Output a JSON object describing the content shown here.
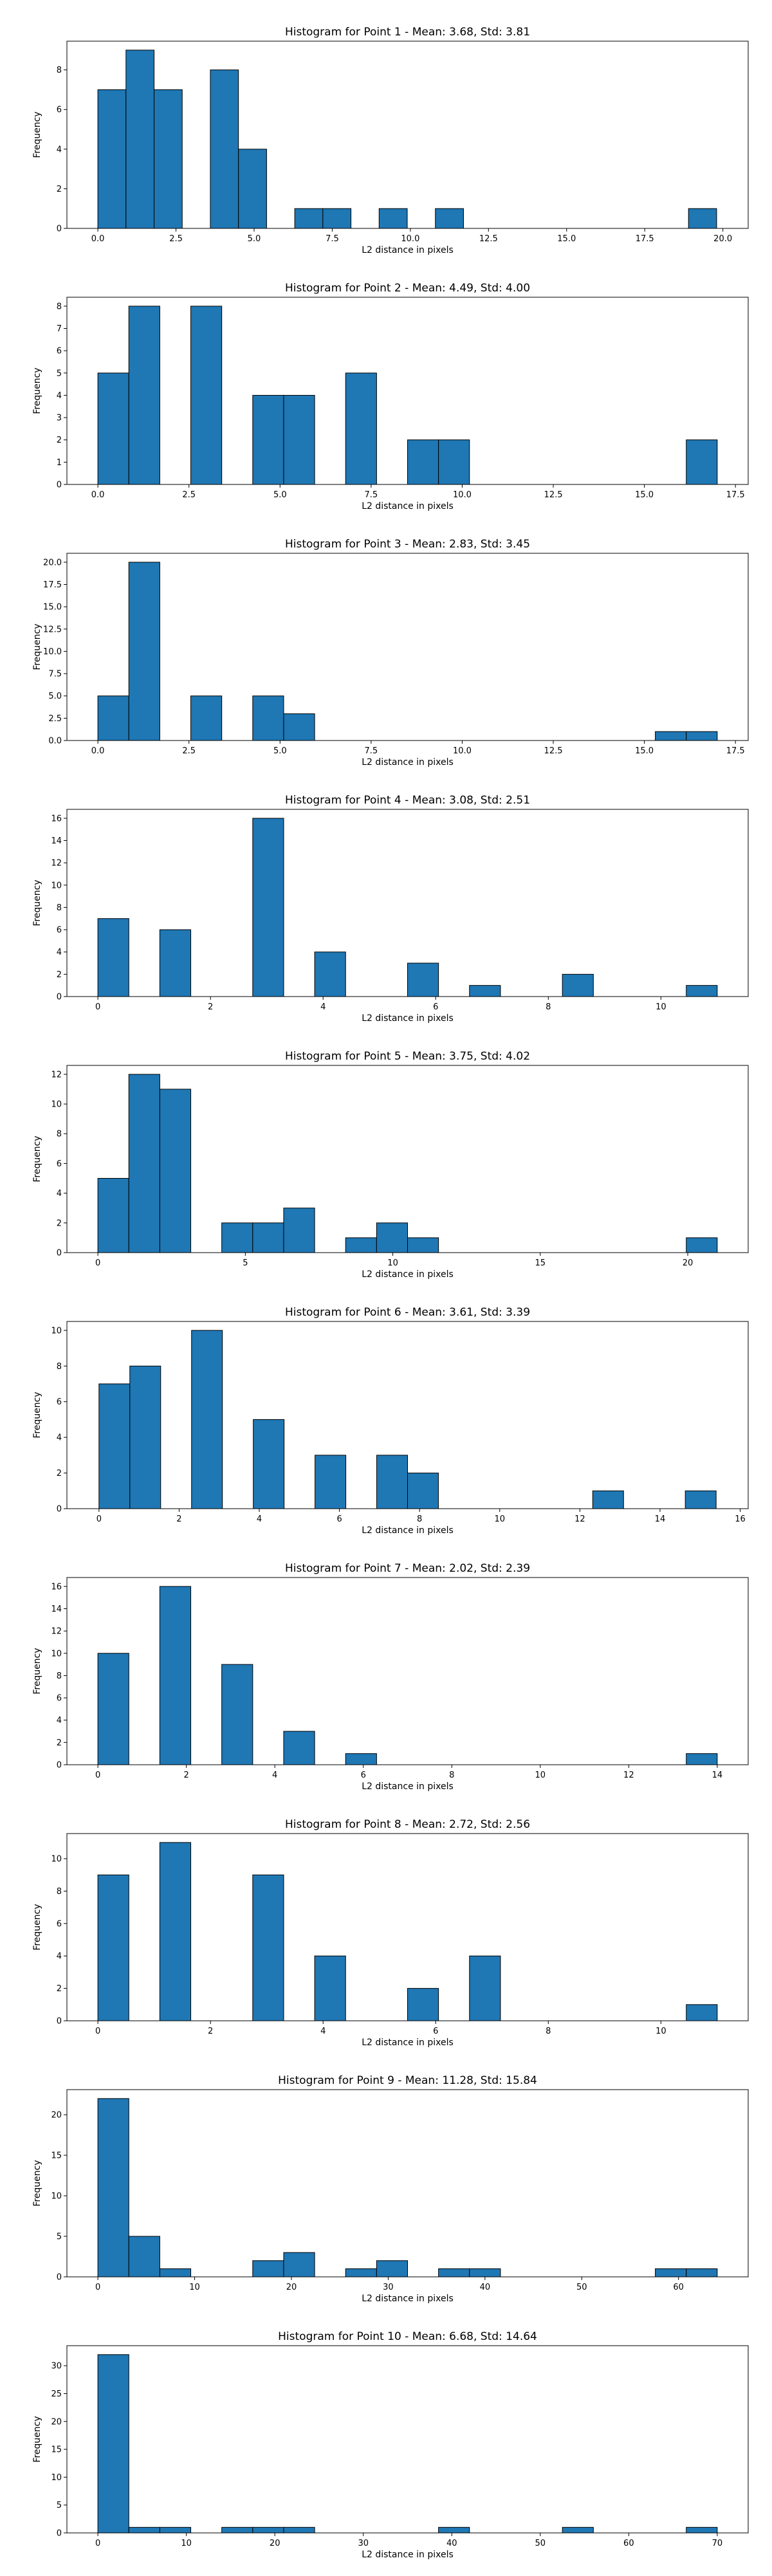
{
  "figure": {
    "bar_color": "#1f77b4",
    "edge_color": "#000000"
  },
  "chart_data": [
    {
      "type": "bar",
      "title": "Histogram for Point 1 - Mean: 3.68, Std: 3.81",
      "xlabel": "L2 distance in pixels",
      "ylabel": "Frequency",
      "grid": false,
      "xlim": [
        -0.99,
        20.81
      ],
      "ylim": [
        0,
        9.45
      ],
      "xticks": [
        0.0,
        2.5,
        5.0,
        7.5,
        10.0,
        12.5,
        15.0,
        17.5,
        20.0
      ],
      "xtick_labels": [
        "0.0",
        "2.5",
        "5.0",
        "7.5",
        "10.0",
        "12.5",
        "15.0",
        "17.5",
        "20.0"
      ],
      "yticks": [
        0,
        2,
        4,
        6,
        8
      ],
      "ytick_labels": [
        "0",
        "2",
        "4",
        "6",
        "8"
      ],
      "bin_edges": [
        0.0,
        0.9,
        1.8,
        2.7,
        3.6,
        4.5,
        5.4,
        6.3,
        7.2,
        8.1,
        9.0,
        9.9,
        10.8,
        11.7,
        12.6,
        13.5,
        14.4,
        15.3,
        16.2,
        17.1,
        18.0,
        18.9,
        19.8
      ],
      "counts": [
        7,
        9,
        7,
        0,
        8,
        4,
        0,
        1,
        1,
        0,
        1,
        0,
        1,
        0,
        0,
        0,
        0,
        0,
        0,
        0,
        0,
        1
      ]
    },
    {
      "type": "bar",
      "title": "Histogram for Point 2 - Mean: 4.49, Std: 4.00",
      "xlabel": "L2 distance in pixels",
      "ylabel": "Frequency",
      "grid": false,
      "xlim": [
        -0.85,
        17.85
      ],
      "ylim": [
        0,
        8.4
      ],
      "xticks": [
        0.0,
        2.5,
        5.0,
        7.5,
        10.0,
        12.5,
        15.0,
        17.5
      ],
      "xtick_labels": [
        "0.0",
        "2.5",
        "5.0",
        "7.5",
        "10.0",
        "12.5",
        "15.0",
        "17.5"
      ],
      "yticks": [
        0,
        1,
        2,
        3,
        4,
        5,
        6,
        7,
        8
      ],
      "ytick_labels": [
        "0",
        "1",
        "2",
        "3",
        "4",
        "5",
        "6",
        "7",
        "8"
      ],
      "bin_edges": [
        0.0,
        0.85,
        1.7,
        2.55,
        3.4,
        4.25,
        5.1,
        5.95,
        6.8,
        7.65,
        8.5,
        9.35,
        10.2,
        11.05,
        11.9,
        12.75,
        13.6,
        14.45,
        15.3,
        16.15,
        17.0
      ],
      "counts": [
        5,
        8,
        0,
        8,
        0,
        4,
        4,
        0,
        5,
        0,
        2,
        2,
        0,
        0,
        0,
        0,
        0,
        0,
        0,
        2
      ]
    },
    {
      "type": "bar",
      "title": "Histogram for Point 3 - Mean: 2.83, Std: 3.45",
      "xlabel": "L2 distance in pixels",
      "ylabel": "Frequency",
      "grid": false,
      "xlim": [
        -0.85,
        17.85
      ],
      "ylim": [
        0,
        21.0
      ],
      "xticks": [
        0.0,
        2.5,
        5.0,
        7.5,
        10.0,
        12.5,
        15.0,
        17.5
      ],
      "xtick_labels": [
        "0.0",
        "2.5",
        "5.0",
        "7.5",
        "10.0",
        "12.5",
        "15.0",
        "17.5"
      ],
      "yticks": [
        0.0,
        2.5,
        5.0,
        7.5,
        10.0,
        12.5,
        15.0,
        17.5,
        20.0
      ],
      "ytick_labels": [
        "0.0",
        "2.5",
        "5.0",
        "7.5",
        "10.0",
        "12.5",
        "15.0",
        "17.5",
        "20.0"
      ],
      "bin_edges": [
        0.0,
        0.85,
        1.7,
        2.55,
        3.4,
        4.25,
        5.1,
        5.95,
        6.8,
        7.65,
        8.5,
        9.35,
        10.2,
        11.05,
        11.9,
        12.75,
        13.6,
        14.45,
        15.3,
        16.15,
        17.0
      ],
      "counts": [
        5,
        20,
        0,
        5,
        0,
        5,
        3,
        0,
        0,
        0,
        0,
        0,
        0,
        0,
        0,
        0,
        0,
        0,
        1,
        1
      ]
    },
    {
      "type": "bar",
      "title": "Histogram for Point 4 - Mean: 3.08, Std: 2.51",
      "xlabel": "L2 distance in pixels",
      "ylabel": "Frequency",
      "grid": false,
      "xlim": [
        -0.55,
        11.55
      ],
      "ylim": [
        0,
        16.8
      ],
      "xticks": [
        0,
        2,
        4,
        6,
        8,
        10
      ],
      "xtick_labels": [
        "0",
        "2",
        "4",
        "6",
        "8",
        "10"
      ],
      "yticks": [
        0,
        2,
        4,
        6,
        8,
        10,
        12,
        14,
        16
      ],
      "ytick_labels": [
        "0",
        "2",
        "4",
        "6",
        "8",
        "10",
        "12",
        "14",
        "16"
      ],
      "bin_edges": [
        0.0,
        0.55,
        1.1,
        1.65,
        2.2,
        2.75,
        3.3,
        3.85,
        4.4,
        4.95,
        5.5,
        6.05,
        6.6,
        7.15,
        7.7,
        8.25,
        8.8,
        9.35,
        9.9,
        10.45,
        11.0
      ],
      "counts": [
        7,
        0,
        6,
        0,
        0,
        16,
        0,
        4,
        0,
        0,
        3,
        0,
        1,
        0,
        0,
        2,
        0,
        0,
        0,
        1
      ]
    },
    {
      "type": "bar",
      "title": "Histogram for Point 5 - Mean: 3.75, Std: 4.02",
      "xlabel": "L2 distance in pixels",
      "ylabel": "Frequency",
      "grid": false,
      "xlim": [
        -1.05,
        22.05
      ],
      "ylim": [
        0,
        12.6
      ],
      "xticks": [
        0,
        5,
        10,
        15,
        20
      ],
      "xtick_labels": [
        "0",
        "5",
        "10",
        "15",
        "20"
      ],
      "yticks": [
        0,
        2,
        4,
        6,
        8,
        10,
        12
      ],
      "ytick_labels": [
        "0",
        "2",
        "4",
        "6",
        "8",
        "10",
        "12"
      ],
      "bin_edges": [
        0.0,
        1.05,
        2.1,
        3.15,
        4.2,
        5.25,
        6.3,
        7.35,
        8.4,
        9.45,
        10.5,
        11.55,
        12.6,
        13.65,
        14.7,
        15.75,
        16.8,
        17.85,
        18.9,
        19.95,
        21.0
      ],
      "counts": [
        5,
        12,
        11,
        0,
        2,
        2,
        3,
        0,
        1,
        2,
        1,
        0,
        0,
        0,
        0,
        0,
        0,
        0,
        0,
        1
      ]
    },
    {
      "type": "bar",
      "title": "Histogram for Point 6 - Mean: 3.61, Std: 3.39",
      "xlabel": "L2 distance in pixels",
      "ylabel": "Frequency",
      "grid": false,
      "xlim": [
        -0.8,
        16.2
      ],
      "ylim": [
        0,
        10.5
      ],
      "xticks": [
        0,
        2,
        4,
        6,
        8,
        10,
        12,
        14,
        16
      ],
      "xtick_labels": [
        "0",
        "2",
        "4",
        "6",
        "8",
        "10",
        "12",
        "14",
        "16"
      ],
      "yticks": [
        0,
        2,
        4,
        6,
        8,
        10
      ],
      "ytick_labels": [
        "0",
        "2",
        "4",
        "6",
        "8",
        "10"
      ],
      "bin_edges": [
        0.0,
        0.77,
        1.54,
        2.31,
        3.08,
        3.85,
        4.62,
        5.39,
        6.16,
        6.93,
        7.7,
        8.47,
        9.24,
        10.01,
        10.78,
        11.55,
        12.32,
        13.09,
        13.86,
        14.63,
        15.4
      ],
      "counts": [
        7,
        8,
        0,
        10,
        0,
        5,
        0,
        3,
        0,
        3,
        2,
        0,
        0,
        0,
        0,
        0,
        1,
        0,
        0,
        1
      ]
    },
    {
      "type": "bar",
      "title": "Histogram for Point 7 - Mean: 2.02, Std: 2.39",
      "xlabel": "L2 distance in pixels",
      "ylabel": "Frequency",
      "grid": false,
      "xlim": [
        -0.7,
        14.7
      ],
      "ylim": [
        0,
        16.8
      ],
      "xticks": [
        0,
        2,
        4,
        6,
        8,
        10,
        12,
        14
      ],
      "xtick_labels": [
        "0",
        "2",
        "4",
        "6",
        "8",
        "10",
        "12",
        "14"
      ],
      "yticks": [
        0,
        2,
        4,
        6,
        8,
        10,
        12,
        14,
        16
      ],
      "ytick_labels": [
        "0",
        "2",
        "4",
        "6",
        "8",
        "10",
        "12",
        "14",
        "16"
      ],
      "bin_edges": [
        0.0,
        0.7,
        1.4,
        2.1,
        2.8,
        3.5,
        4.2,
        4.9,
        5.6,
        6.3,
        7.0,
        7.7,
        8.4,
        9.1,
        9.8,
        10.5,
        11.2,
        11.9,
        12.6,
        13.3,
        14.0
      ],
      "counts": [
        10,
        0,
        16,
        0,
        9,
        0,
        3,
        0,
        1,
        0,
        0,
        0,
        0,
        0,
        0,
        0,
        0,
        0,
        0,
        1
      ]
    },
    {
      "type": "bar",
      "title": "Histogram for Point 8 - Mean: 2.72, Std: 2.56",
      "xlabel": "L2 distance in pixels",
      "ylabel": "Frequency",
      "grid": false,
      "xlim": [
        -0.55,
        11.55
      ],
      "ylim": [
        0,
        11.55
      ],
      "xticks": [
        0,
        2,
        4,
        6,
        8,
        10
      ],
      "xtick_labels": [
        "0",
        "2",
        "4",
        "6",
        "8",
        "10"
      ],
      "yticks": [
        0,
        2,
        4,
        6,
        8,
        10
      ],
      "ytick_labels": [
        "0",
        "2",
        "4",
        "6",
        "8",
        "10"
      ],
      "bin_edges": [
        0.0,
        0.55,
        1.1,
        1.65,
        2.2,
        2.75,
        3.3,
        3.85,
        4.4,
        4.95,
        5.5,
        6.05,
        6.6,
        7.15,
        7.7,
        8.25,
        8.8,
        9.35,
        9.9,
        10.45,
        11.0
      ],
      "counts": [
        9,
        0,
        11,
        0,
        0,
        9,
        0,
        4,
        0,
        0,
        2,
        0,
        4,
        0,
        0,
        0,
        0,
        0,
        0,
        1
      ]
    },
    {
      "type": "bar",
      "title": "Histogram for Point 9 - Mean: 11.28, Std: 15.84",
      "xlabel": "L2 distance in pixels",
      "ylabel": "Frequency",
      "grid": false,
      "xlim": [
        -3.2,
        67.2
      ],
      "ylim": [
        0,
        23.1
      ],
      "xticks": [
        0,
        10,
        20,
        30,
        40,
        50,
        60
      ],
      "xtick_labels": [
        "0",
        "10",
        "20",
        "30",
        "40",
        "50",
        "60"
      ],
      "yticks": [
        0,
        5,
        10,
        15,
        20
      ],
      "ytick_labels": [
        "0",
        "5",
        "10",
        "15",
        "20"
      ],
      "bin_edges": [
        0.0,
        3.2,
        6.4,
        9.6,
        12.8,
        16.0,
        19.2,
        22.4,
        25.6,
        28.8,
        32.0,
        35.2,
        38.4,
        41.6,
        44.8,
        48.0,
        51.2,
        54.4,
        57.6,
        60.8,
        64.0
      ],
      "counts": [
        22,
        5,
        1,
        0,
        0,
        2,
        3,
        0,
        1,
        2,
        0,
        1,
        1,
        0,
        0,
        0,
        0,
        0,
        1,
        1
      ]
    },
    {
      "type": "bar",
      "title": "Histogram for Point 10 - Mean: 6.68, Std: 14.64",
      "xlabel": "L2 distance in pixels",
      "ylabel": "Frequency",
      "grid": false,
      "xlim": [
        -3.5,
        73.5
      ],
      "ylim": [
        0,
        33.6
      ],
      "xticks": [
        0,
        10,
        20,
        30,
        40,
        50,
        60,
        70
      ],
      "xtick_labels": [
        "0",
        "10",
        "20",
        "30",
        "40",
        "50",
        "60",
        "70"
      ],
      "yticks": [
        0,
        5,
        10,
        15,
        20,
        25,
        30
      ],
      "ytick_labels": [
        "0",
        "5",
        "10",
        "15",
        "20",
        "25",
        "30"
      ],
      "bin_edges": [
        0.0,
        3.5,
        7.0,
        10.5,
        14.0,
        17.5,
        21.0,
        24.5,
        28.0,
        31.5,
        35.0,
        38.5,
        42.0,
        45.5,
        49.0,
        52.5,
        56.0,
        59.5,
        63.0,
        66.5,
        70.0
      ],
      "counts": [
        32,
        1,
        1,
        0,
        1,
        1,
        1,
        0,
        0,
        0,
        0,
        1,
        0,
        0,
        0,
        1,
        0,
        0,
        0,
        1
      ]
    }
  ]
}
